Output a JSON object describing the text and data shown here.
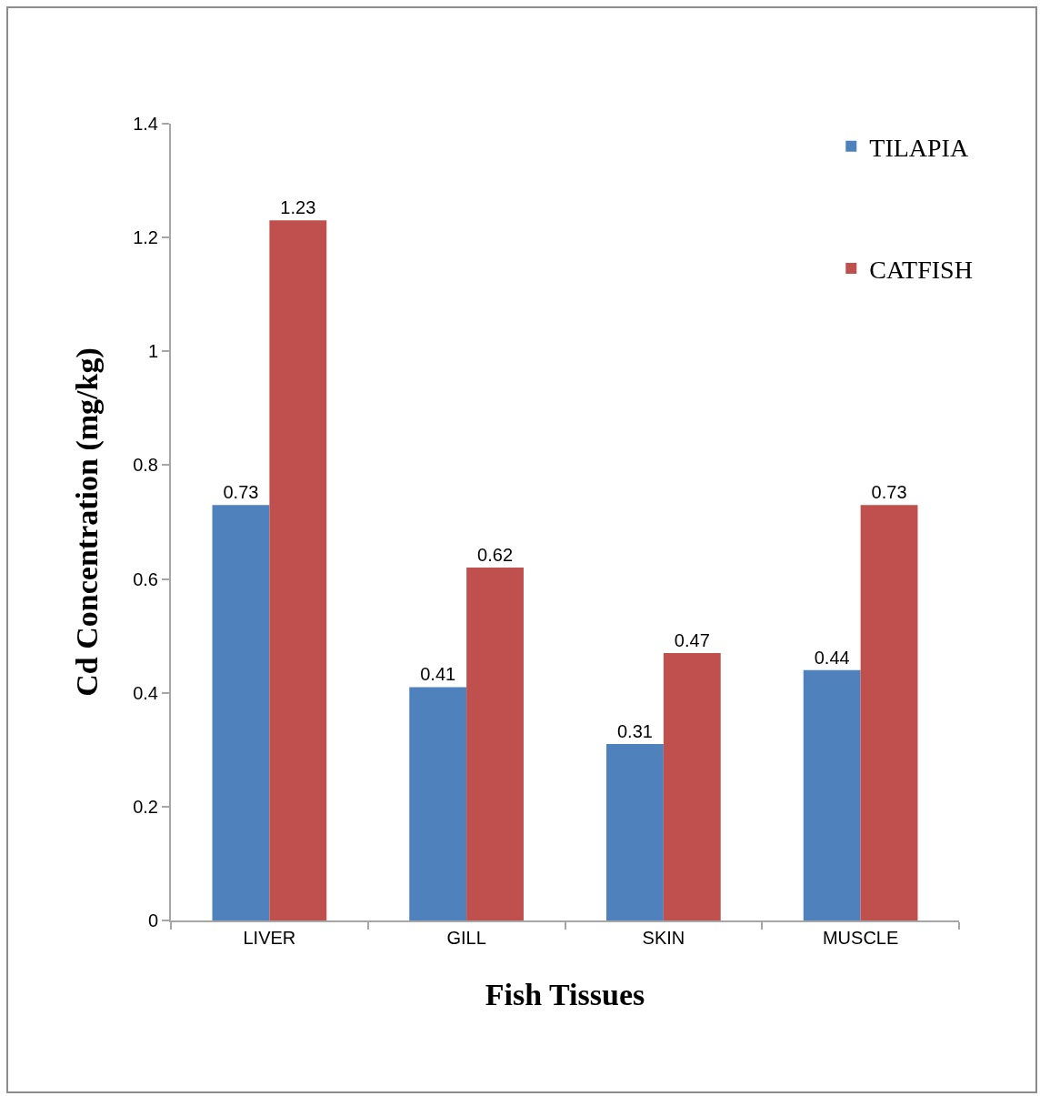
{
  "chart_data": {
    "type": "bar",
    "xlabel": "Fish Tissues",
    "ylabel": "Cd Concentration (mg/kg)",
    "categories": [
      "LIVER",
      "GILL",
      "SKIN",
      "MUSCLE"
    ],
    "series": [
      {
        "name": "TILAPIA",
        "color": "#4f81bd",
        "values": [
          0.73,
          0.41,
          0.31,
          0.44
        ]
      },
      {
        "name": "CATFISH",
        "color": "#c0504d",
        "values": [
          1.23,
          0.62,
          0.47,
          0.73
        ]
      }
    ],
    "ylim": [
      0,
      1.4
    ],
    "yticks": [
      0,
      0.2,
      0.4,
      0.6,
      0.8,
      1,
      1.2,
      1.4
    ],
    "data_labels": true,
    "legend": "top right"
  }
}
